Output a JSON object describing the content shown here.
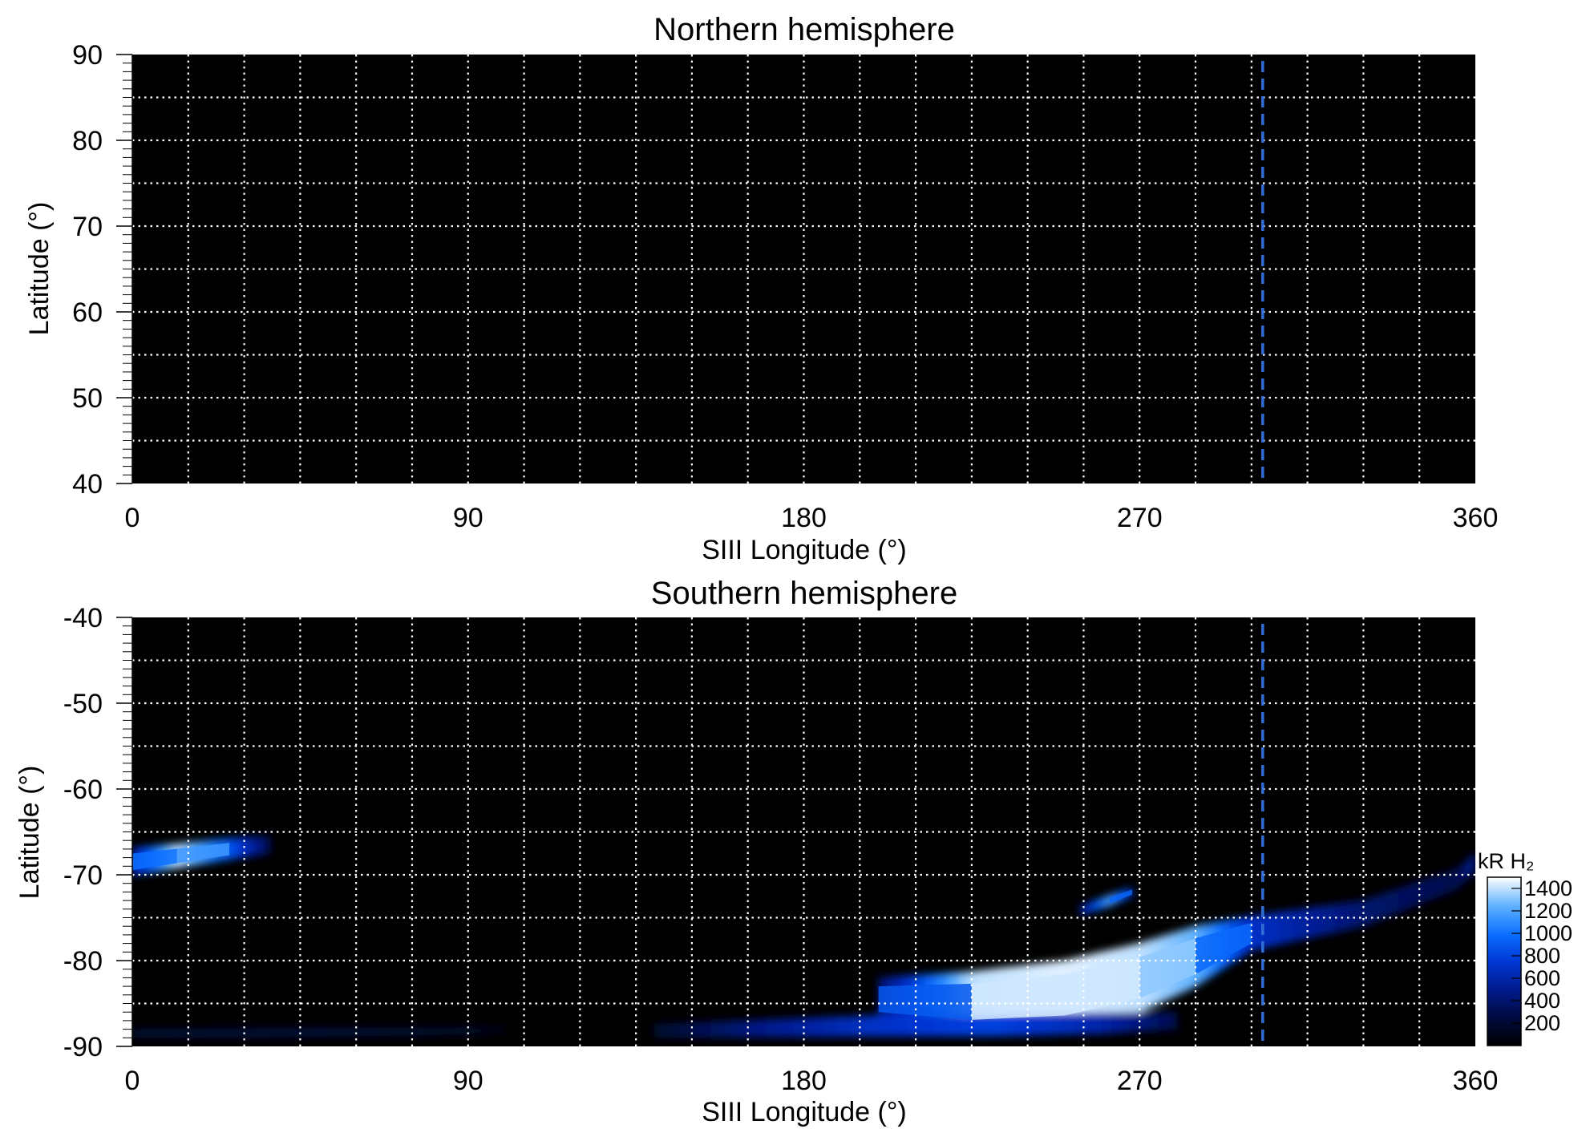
{
  "chart_data": [
    {
      "type": "heatmap",
      "title": "Northern hemisphere",
      "xlabel": "SIII Longitude (°)",
      "ylabel": "Latitude (°)",
      "xlim": [
        0,
        360
      ],
      "ylim": [
        40,
        90
      ],
      "xticks": [
        "0",
        "90",
        "180",
        "270",
        "360"
      ],
      "yticks": [
        "90",
        "80",
        "70",
        "60",
        "50",
        "40"
      ],
      "ytick_values": [
        90,
        80,
        70,
        60,
        50,
        40
      ],
      "grid": true,
      "grid_x_step": 15,
      "grid_y_step": 5,
      "background_color": "#000000",
      "marker_longitude": 303,
      "marker_color": "#2f6fd6",
      "emission": []
    },
    {
      "type": "heatmap",
      "title": "Southern hemisphere",
      "xlabel": "SIII Longitude (°)",
      "ylabel": "Latitude (°)",
      "xlim": [
        0,
        360
      ],
      "ylim": [
        -90,
        -40
      ],
      "xticks": [
        "0",
        "90",
        "180",
        "270",
        "360"
      ],
      "yticks": [
        "-40",
        "-50",
        "-60",
        "-70",
        "-80",
        "-90"
      ],
      "ytick_values": [
        -40,
        -50,
        -60,
        -70,
        -80,
        -90
      ],
      "grid": true,
      "grid_x_step": 15,
      "grid_y_step": 5,
      "background_color": "#000000",
      "marker_longitude": 303,
      "marker_color": "#2f6fd6",
      "emission": [
        {
          "name": "",
          "lon": [
            0,
            12,
            26,
            37
          ],
          "lat_center": [
            -68.5,
            -67.8,
            -67.0,
            -66.5
          ],
          "half_width": [
            1.6,
            1.4,
            1.2,
            1.0
          ],
          "intensity": [
            600,
            1400,
            900,
            300
          ]
        },
        {
          "name": "",
          "lon": [
            200,
            225,
            250,
            270,
            285,
            300,
            330,
            355,
            360
          ],
          "lat_center": [
            -84.5,
            -84.8,
            -84.0,
            -82.0,
            -79.5,
            -76.8,
            -74.5,
            -70.5,
            -68.5
          ],
          "half_width": [
            2.5,
            3.5,
            4.0,
            4.0,
            3.5,
            2.0,
            1.5,
            1.2,
            1.0
          ],
          "intensity": [
            400,
            1400,
            1450,
            1400,
            1250,
            700,
            400,
            300,
            500
          ]
        },
        {
          "name": "",
          "lon": [
            140,
            170,
            200,
            230,
            260,
            280
          ],
          "lat_center": [
            -88.2,
            -87.9,
            -87.6,
            -87.5,
            -87.3,
            -87.0
          ],
          "half_width": [
            0.8,
            1.0,
            1.2,
            1.3,
            1.2,
            1.0
          ],
          "intensity": [
            200,
            500,
            700,
            800,
            600,
            300
          ]
        },
        {
          "name": "",
          "lon": [
            254,
            262,
            268
          ],
          "lat_center": [
            -74.2,
            -73.0,
            -72.0
          ],
          "half_width": [
            0.5,
            0.6,
            0.5
          ],
          "intensity": [
            500,
            1200,
            700
          ]
        },
        {
          "name": "",
          "lon": [
            0,
            40,
            90,
            100
          ],
          "lat_center": [
            -88.5,
            -88.4,
            -88.2,
            -88.0
          ],
          "half_width": [
            0.5,
            0.5,
            0.4,
            0.3
          ],
          "intensity": [
            200,
            250,
            200,
            100
          ]
        }
      ]
    }
  ],
  "colorbar": {
    "label": "kR H₂",
    "ticks": [
      "1400",
      "1200",
      "1000",
      "800",
      "600",
      "400",
      "200"
    ],
    "tick_values": [
      1400,
      1200,
      1000,
      800,
      600,
      400,
      200
    ],
    "range": [
      0,
      1500
    ],
    "colors": [
      "#000000",
      "#000a3c",
      "#001a8c",
      "#0037d6",
      "#0b6fff",
      "#5fb2ff",
      "#ffffff"
    ]
  }
}
